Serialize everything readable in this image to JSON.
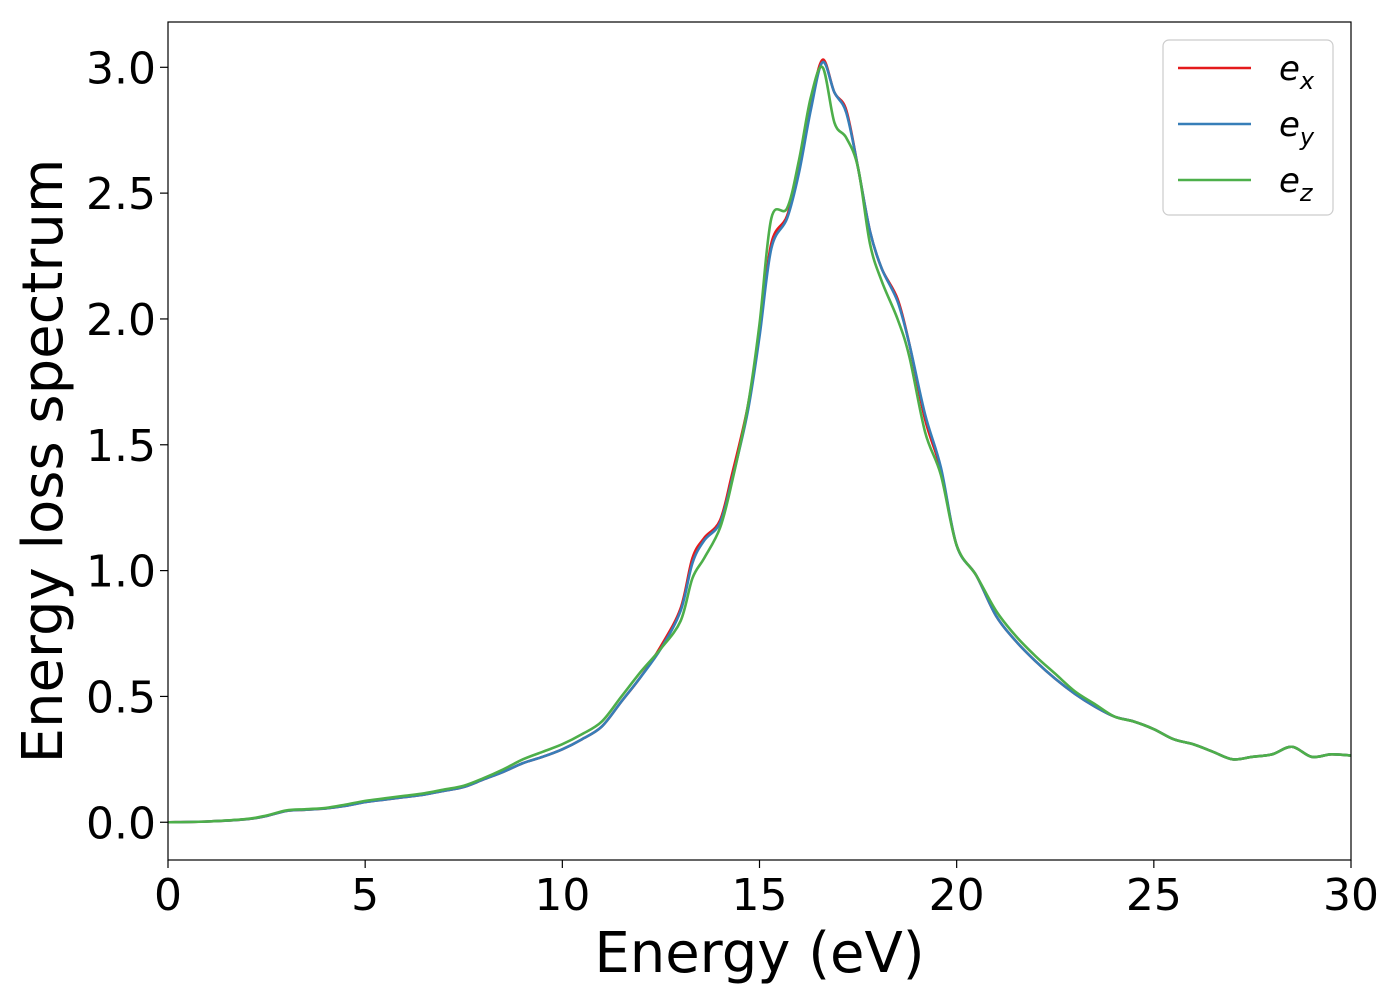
{
  "chart_data": {
    "type": "line",
    "title": "",
    "xlabel": "Energy (eV)",
    "ylabel": "Energy loss spectrum",
    "xlim": [
      0,
      30
    ],
    "ylim": [
      -0.15,
      3.18
    ],
    "xticks": [
      0,
      5,
      10,
      15,
      20,
      25,
      30
    ],
    "xtick_labels": [
      "0",
      "5",
      "10",
      "15",
      "20",
      "25",
      "30"
    ],
    "yticks": [
      0.0,
      0.5,
      1.0,
      1.5,
      2.0,
      2.5,
      3.0
    ],
    "ytick_labels": [
      "0.0",
      "0.5",
      "1.0",
      "1.5",
      "2.0",
      "2.5",
      "3.0"
    ],
    "grid": false,
    "legend_position": "top-right",
    "x": [
      0,
      1,
      2,
      2.5,
      3,
      3.5,
      4,
      4.5,
      5,
      5.5,
      6,
      6.5,
      7,
      7.5,
      8,
      8.5,
      9,
      9.5,
      10,
      10.5,
      11,
      11.5,
      12,
      12.5,
      13,
      13.3,
      13.6,
      14,
      14.3,
      14.7,
      15,
      15.3,
      15.7,
      16,
      16.3,
      16.6,
      16.9,
      17.2,
      17.5,
      17.8,
      18.1,
      18.5,
      18.8,
      19.2,
      19.6,
      20,
      20.5,
      21,
      21.5,
      22,
      22.5,
      23,
      23.5,
      24,
      24.5,
      25,
      25.5,
      26,
      26.5,
      27,
      27.5,
      28,
      28.5,
      29,
      29.5,
      30
    ],
    "series": [
      {
        "name": "e_x",
        "legend_base": "e",
        "legend_sub": "x",
        "color": "#e41a1c",
        "values": [
          0.0,
          0.003,
          0.012,
          0.025,
          0.045,
          0.05,
          0.055,
          0.065,
          0.08,
          0.09,
          0.1,
          0.11,
          0.125,
          0.14,
          0.17,
          0.2,
          0.235,
          0.26,
          0.29,
          0.33,
          0.38,
          0.48,
          0.58,
          0.7,
          0.85,
          1.05,
          1.13,
          1.2,
          1.38,
          1.65,
          1.95,
          2.3,
          2.41,
          2.6,
          2.85,
          3.03,
          2.9,
          2.83,
          2.6,
          2.35,
          2.2,
          2.08,
          1.9,
          1.6,
          1.4,
          1.1,
          0.98,
          0.82,
          0.72,
          0.64,
          0.57,
          0.51,
          0.46,
          0.42,
          0.4,
          0.37,
          0.33,
          0.31,
          0.28,
          0.25,
          0.26,
          0.27,
          0.3,
          0.26,
          0.27,
          0.265
        ]
      },
      {
        "name": "e_y",
        "legend_base": "e",
        "legend_sub": "y",
        "color": "#377eb8",
        "values": [
          0.0,
          0.003,
          0.012,
          0.025,
          0.045,
          0.05,
          0.055,
          0.065,
          0.08,
          0.09,
          0.1,
          0.11,
          0.125,
          0.14,
          0.17,
          0.2,
          0.235,
          0.26,
          0.29,
          0.33,
          0.38,
          0.48,
          0.58,
          0.69,
          0.84,
          1.03,
          1.12,
          1.19,
          1.36,
          1.63,
          1.93,
          2.28,
          2.4,
          2.58,
          2.83,
          3.02,
          2.9,
          2.82,
          2.6,
          2.35,
          2.2,
          2.07,
          1.9,
          1.62,
          1.41,
          1.1,
          0.98,
          0.82,
          0.72,
          0.64,
          0.57,
          0.51,
          0.46,
          0.42,
          0.4,
          0.37,
          0.33,
          0.31,
          0.28,
          0.25,
          0.26,
          0.27,
          0.3,
          0.26,
          0.27,
          0.265
        ]
      },
      {
        "name": "e_z",
        "legend_base": "e",
        "legend_sub": "z",
        "color": "#4daf4a",
        "values": [
          0.0,
          0.003,
          0.013,
          0.027,
          0.047,
          0.052,
          0.057,
          0.07,
          0.085,
          0.095,
          0.105,
          0.115,
          0.13,
          0.145,
          0.175,
          0.21,
          0.25,
          0.28,
          0.31,
          0.35,
          0.4,
          0.5,
          0.6,
          0.69,
          0.8,
          0.97,
          1.05,
          1.17,
          1.35,
          1.65,
          1.98,
          2.4,
          2.44,
          2.63,
          2.88,
          3.0,
          2.78,
          2.72,
          2.6,
          2.3,
          2.15,
          2.0,
          1.85,
          1.55,
          1.38,
          1.1,
          0.98,
          0.84,
          0.74,
          0.66,
          0.59,
          0.52,
          0.47,
          0.42,
          0.4,
          0.37,
          0.33,
          0.31,
          0.28,
          0.25,
          0.26,
          0.27,
          0.3,
          0.26,
          0.27,
          0.265
        ]
      }
    ]
  }
}
